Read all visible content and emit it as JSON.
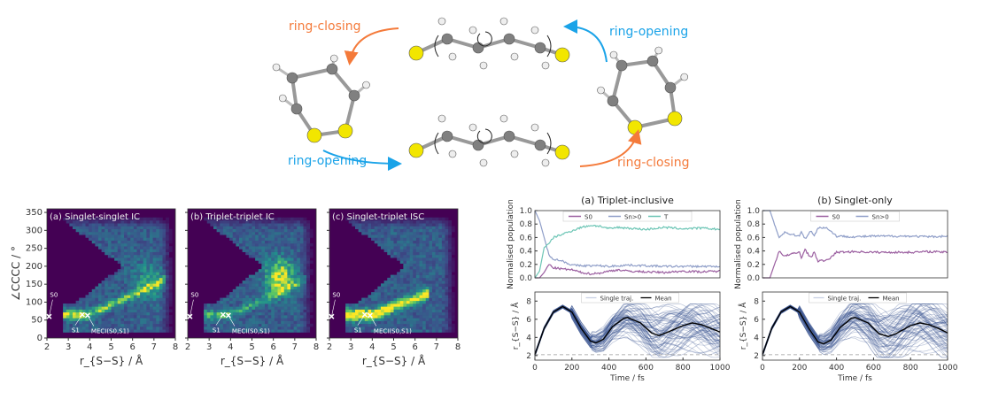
{
  "scheme": {
    "labels": {
      "ring_closing_top": "ring-closing",
      "ring_opening_top": "ring-opening",
      "ring_opening_bottom": "ring-opening",
      "ring_closing_bottom": "ring-closing"
    },
    "colors": {
      "ring_closing": "#f47a3a",
      "ring_opening": "#1aa3e8",
      "sulfur": "#f2e600",
      "carbon": "#808080",
      "hydrogen": "#eeeeee"
    }
  },
  "chart_data": [
    {
      "type": "heatmap",
      "panel": "(a) Singlet-singlet IC",
      "title": "(a) Singlet-singlet IC",
      "xlabel": "r_{S−S} / Å",
      "ylabel": "∠CCCC / °",
      "xlim": [
        2,
        8
      ],
      "ylim": [
        0,
        360
      ],
      "xticks": [
        2,
        3,
        4,
        5,
        6,
        7,
        8
      ],
      "yticks": [
        0,
        50,
        100,
        150,
        200,
        250,
        300,
        350
      ],
      "colormap": "viridis",
      "annotations": [
        {
          "label": "S0",
          "x": 2.1,
          "y": 60
        },
        {
          "label": "S1",
          "x": 3.65,
          "y": 65
        },
        {
          "label": "MECI(S0,S1)",
          "x": 3.9,
          "y": 63
        }
      ]
    },
    {
      "type": "heatmap",
      "panel": "(b) Triplet-triplet IC",
      "title": "(b) Triplet-triplet IC",
      "xlabel": "r_{S−S} / Å",
      "xlim": [
        2,
        8
      ],
      "ylim": [
        0,
        360
      ],
      "xticks": [
        2,
        3,
        4,
        5,
        6,
        7,
        8
      ],
      "colormap": "viridis",
      "annotations": [
        {
          "label": "S0",
          "x": 2.1,
          "y": 60
        },
        {
          "label": "S1",
          "x": 3.65,
          "y": 65
        },
        {
          "label": "MECI(S0,S1)",
          "x": 3.9,
          "y": 63
        }
      ]
    },
    {
      "type": "heatmap",
      "panel": "(c) Singlet-triplet ISC",
      "title": "(c) Singlet-triplet ISC",
      "xlabel": "r_{S−S} / Å",
      "xlim": [
        2,
        8
      ],
      "ylim": [
        0,
        360
      ],
      "xticks": [
        2,
        3,
        4,
        5,
        6,
        7,
        8
      ],
      "colormap": "viridis",
      "annotations": [
        {
          "label": "S0",
          "x": 2.1,
          "y": 60
        },
        {
          "label": "S1",
          "x": 3.65,
          "y": 65
        },
        {
          "label": "MECI(S0,S1)",
          "x": 3.9,
          "y": 63
        }
      ]
    },
    {
      "type": "line",
      "title": "(a) Triplet-inclusive",
      "ylabel": "Normalised population",
      "xlim": [
        0,
        1000
      ],
      "ylim": [
        0,
        1
      ],
      "yticks": [
        0.0,
        0.2,
        0.4,
        0.6,
        0.8,
        1.0
      ],
      "x": [
        0,
        25,
        50,
        75,
        100,
        150,
        200,
        250,
        300,
        350,
        400,
        450,
        500,
        600,
        700,
        800,
        900,
        1000
      ],
      "series": [
        {
          "name": "S0",
          "color": "#9b5fa0",
          "values": [
            0,
            0,
            0.08,
            0.2,
            0.15,
            0.13,
            0.12,
            0.08,
            0.06,
            0.07,
            0.1,
            0.12,
            0.1,
            0.09,
            0.08,
            0.1,
            0.09,
            0.1
          ]
        },
        {
          "name": "Sn>0",
          "color": "#8f9ec8",
          "values": [
            1,
            0.85,
            0.6,
            0.35,
            0.28,
            0.25,
            0.19,
            0.18,
            0.18,
            0.18,
            0.17,
            0.18,
            0.19,
            0.18,
            0.17,
            0.17,
            0.17,
            0.17
          ]
        },
        {
          "name": "T",
          "color": "#6cc5b5",
          "values": [
            0,
            0.1,
            0.45,
            0.5,
            0.6,
            0.65,
            0.7,
            0.75,
            0.78,
            0.77,
            0.73,
            0.75,
            0.74,
            0.72,
            0.75,
            0.73,
            0.74,
            0.72
          ]
        }
      ]
    },
    {
      "type": "line",
      "xlabel": "Time / fs",
      "ylabel": "r_{S−S} / Å",
      "xlim": [
        0,
        1000
      ],
      "ylim": [
        1.5,
        9
      ],
      "xticks": [
        0,
        200,
        400,
        600,
        800,
        1000
      ],
      "yticks": [
        2,
        4,
        6,
        8
      ],
      "reference_line": 2.1,
      "x": [
        0,
        50,
        100,
        150,
        200,
        250,
        300,
        330,
        370,
        420,
        480,
        500,
        570,
        630,
        670,
        720,
        800,
        850,
        900,
        950,
        1000
      ],
      "series": [
        {
          "name": "Single traj.",
          "color": "#3b5591"
        },
        {
          "name": "Mean",
          "color": "#000000",
          "values": [
            2.1,
            5,
            6.8,
            7.4,
            6.8,
            5,
            3.6,
            3.4,
            3.8,
            5.2,
            6.1,
            6.2,
            5.6,
            4.5,
            4.2,
            4.6,
            5.3,
            5.6,
            5.4,
            5,
            4.6
          ]
        }
      ]
    },
    {
      "type": "line",
      "title": "(b) Singlet-only",
      "ylabel": "Normalised population",
      "xlim": [
        0,
        1000
      ],
      "ylim": [
        0,
        1
      ],
      "yticks": [
        0.0,
        0.2,
        0.4,
        0.6,
        0.8,
        1.0
      ],
      "x": [
        0,
        40,
        90,
        120,
        150,
        200,
        210,
        230,
        260,
        280,
        300,
        350,
        400,
        500,
        600,
        700,
        800,
        900,
        1000
      ],
      "series": [
        {
          "name": "S0",
          "color": "#9b5fa0",
          "values": [
            0,
            0,
            0.4,
            0.32,
            0.35,
            0.38,
            0.3,
            0.42,
            0.3,
            0.38,
            0.25,
            0.26,
            0.38,
            0.39,
            0.38,
            0.38,
            0.38,
            0.39,
            0.38
          ]
        },
        {
          "name": "Sn>0",
          "color": "#8f9ec8",
          "values": [
            1,
            1,
            0.6,
            0.68,
            0.65,
            0.62,
            0.7,
            0.58,
            0.7,
            0.62,
            0.75,
            0.74,
            0.62,
            0.61,
            0.62,
            0.62,
            0.62,
            0.61,
            0.62
          ]
        }
      ]
    },
    {
      "type": "line",
      "xlabel": "Time / fs",
      "ylabel": "r_{S−S} / Å",
      "xlim": [
        0,
        1000
      ],
      "ylim": [
        1.5,
        9
      ],
      "xticks": [
        0,
        200,
        400,
        600,
        800,
        1000
      ],
      "yticks": [
        2,
        4,
        6,
        8
      ],
      "reference_line": 2.1,
      "x": [
        0,
        50,
        100,
        150,
        200,
        250,
        300,
        330,
        370,
        420,
        480,
        500,
        570,
        630,
        680,
        720,
        800,
        850,
        900,
        950,
        1000
      ],
      "series": [
        {
          "name": "Single traj.",
          "color": "#3b5591"
        },
        {
          "name": "Mean",
          "color": "#000000",
          "values": [
            2.1,
            5,
            6.8,
            7.4,
            6.8,
            5,
            3.5,
            3.3,
            3.7,
            5.1,
            6.1,
            6.2,
            5.6,
            4.4,
            4.1,
            4.4,
            5.3,
            5.6,
            5.4,
            5,
            4.5
          ]
        }
      ]
    }
  ]
}
